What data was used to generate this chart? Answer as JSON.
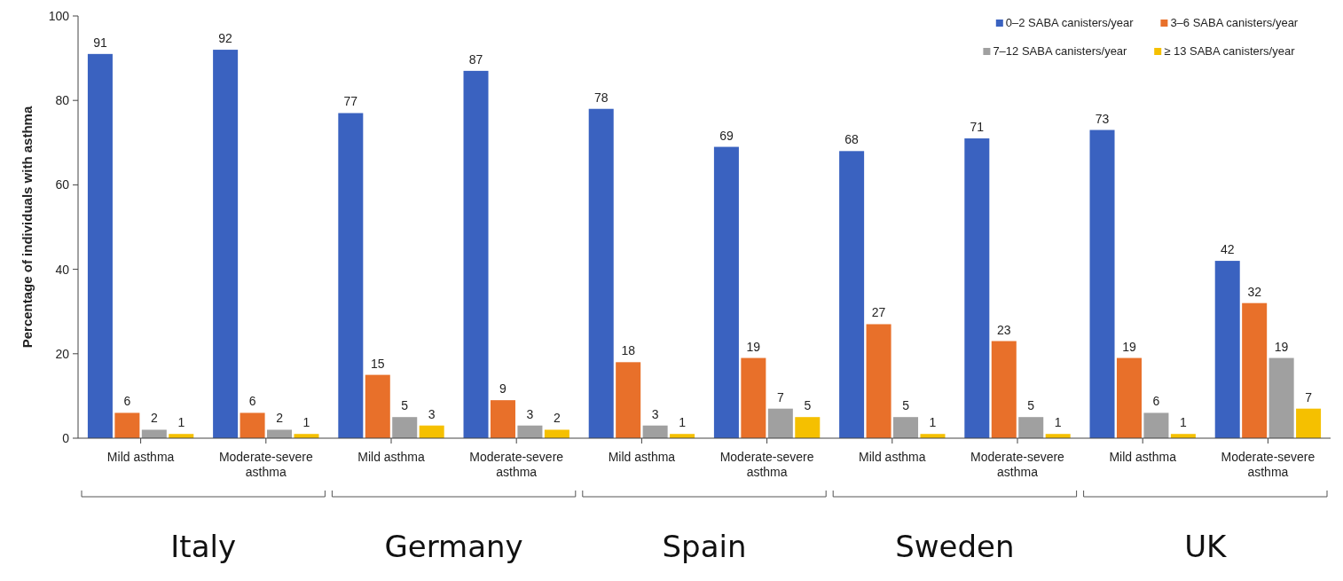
{
  "chart_data": {
    "type": "bar",
    "ylabel": "Percentage of individuals with asthma",
    "categories": [
      "Mild asthma",
      "Moderate-severe asthma",
      "Mild asthma",
      "Moderate-severe asthma",
      "Mild asthma",
      "Moderate-severe asthma",
      "Mild asthma",
      "Moderate-severe asthma",
      "Mild asthma",
      "Moderate-severe asthma"
    ],
    "series": [
      {
        "name": "0–2 SABA canisters/year",
        "color": "#3a62c0",
        "values": [
          91,
          92,
          77,
          87,
          78,
          69,
          68,
          71,
          73,
          42
        ]
      },
      {
        "name": "3–6 SABA canisters/year",
        "color": "#e8702a",
        "values": [
          6,
          6,
          15,
          9,
          18,
          19,
          27,
          23,
          19,
          32
        ]
      },
      {
        "name": "7–12 SABA canisters/year",
        "color": "#a0a0a0",
        "values": [
          2,
          2,
          5,
          3,
          3,
          7,
          5,
          5,
          6,
          19
        ]
      },
      {
        "name": "≥ 13 SABA canisters/year",
        "color": "#f5c000",
        "values": [
          1,
          1,
          3,
          2,
          1,
          5,
          1,
          1,
          1,
          7
        ]
      }
    ],
    "annotations": [
      "Italy",
      "Germany",
      "Spain",
      "Sweden",
      "UK"
    ],
    "ylim": [
      0,
      100
    ],
    "yticks": [
      0,
      20,
      40,
      60,
      80,
      100
    ],
    "grid": false,
    "legend": "top right",
    "data_labels": true
  }
}
